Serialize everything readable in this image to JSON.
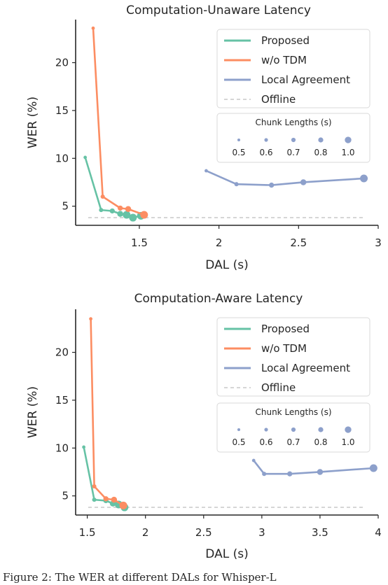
{
  "chart_data": [
    {
      "type": "line",
      "title": "Computation-Unaware Latency",
      "xlabel": "DAL (s)",
      "ylabel": "WER (%)",
      "xlim": [
        1.1,
        3.0
      ],
      "ylim": [
        3.0,
        24.5
      ],
      "xticks": [
        1.5,
        2.0,
        2.5,
        3.0
      ],
      "yticks": [
        5,
        10,
        15,
        20
      ],
      "grid": false,
      "legend": "top-right",
      "series": [
        {
          "name": "Proposed",
          "color": "#66c2a5",
          "x": [
            1.16,
            1.26,
            1.33,
            1.38,
            1.42,
            1.46,
            1.51
          ],
          "y": [
            10.1,
            4.6,
            4.5,
            4.2,
            4.1,
            3.8,
            4.0
          ]
        },
        {
          "name": "w/o TDM",
          "color": "#fc8d62",
          "x": [
            1.21,
            1.27,
            1.38,
            1.43,
            1.53
          ],
          "y": [
            23.6,
            6.0,
            4.8,
            4.7,
            4.1
          ]
        },
        {
          "name": "Local Agreement",
          "color": "#8da0cb",
          "x": [
            1.92,
            2.11,
            2.33,
            2.53,
            2.91
          ],
          "y": [
            8.7,
            7.3,
            7.2,
            7.5,
            7.9
          ]
        }
      ],
      "offline": {
        "name": "Offline",
        "value": 3.8,
        "color": "#c8c8c8"
      },
      "chunk_legend": {
        "title": "Chunk Lengths (s)",
        "labels": [
          "0.5",
          "0.6",
          "0.7",
          "0.8",
          "1.0"
        ],
        "sizes": [
          0.5,
          0.6,
          0.7,
          0.8,
          1.0
        ]
      }
    },
    {
      "type": "line",
      "title": "Computation-Aware Latency",
      "xlabel": "DAL (s)",
      "ylabel": "WER (%)",
      "xlim": [
        1.4,
        4.0
      ],
      "ylim": [
        3.0,
        24.5
      ],
      "xticks": [
        1.5,
        2.0,
        2.5,
        3.0,
        3.5,
        4.0
      ],
      "yticks": [
        5,
        10,
        15,
        20
      ],
      "grid": false,
      "legend": "top-right",
      "series": [
        {
          "name": "Proposed",
          "color": "#66c2a5",
          "x": [
            1.47,
            1.56,
            1.66,
            1.72,
            1.77,
            1.82
          ],
          "y": [
            10.1,
            4.6,
            4.5,
            4.2,
            4.1,
            3.8
          ]
        },
        {
          "name": "w/o TDM",
          "color": "#fc8d62",
          "x": [
            1.53,
            1.56,
            1.66,
            1.73,
            1.81
          ],
          "y": [
            23.5,
            6.0,
            4.7,
            4.6,
            4.0
          ]
        },
        {
          "name": "Local Agreement",
          "color": "#8da0cb",
          "x": [
            2.93,
            3.02,
            3.24,
            3.5,
            3.96
          ],
          "y": [
            8.7,
            7.3,
            7.3,
            7.5,
            7.9
          ]
        }
      ],
      "offline": {
        "name": "Offline",
        "value": 3.8,
        "color": "#c8c8c8"
      },
      "chunk_legend": {
        "title": "Chunk Lengths (s)",
        "labels": [
          "0.5",
          "0.6",
          "0.7",
          "0.8",
          "1.0"
        ],
        "sizes": [
          0.5,
          0.6,
          0.7,
          0.8,
          1.0
        ]
      }
    }
  ],
  "caption": "Figure 2: The WER at different DALs for Whisper-L"
}
